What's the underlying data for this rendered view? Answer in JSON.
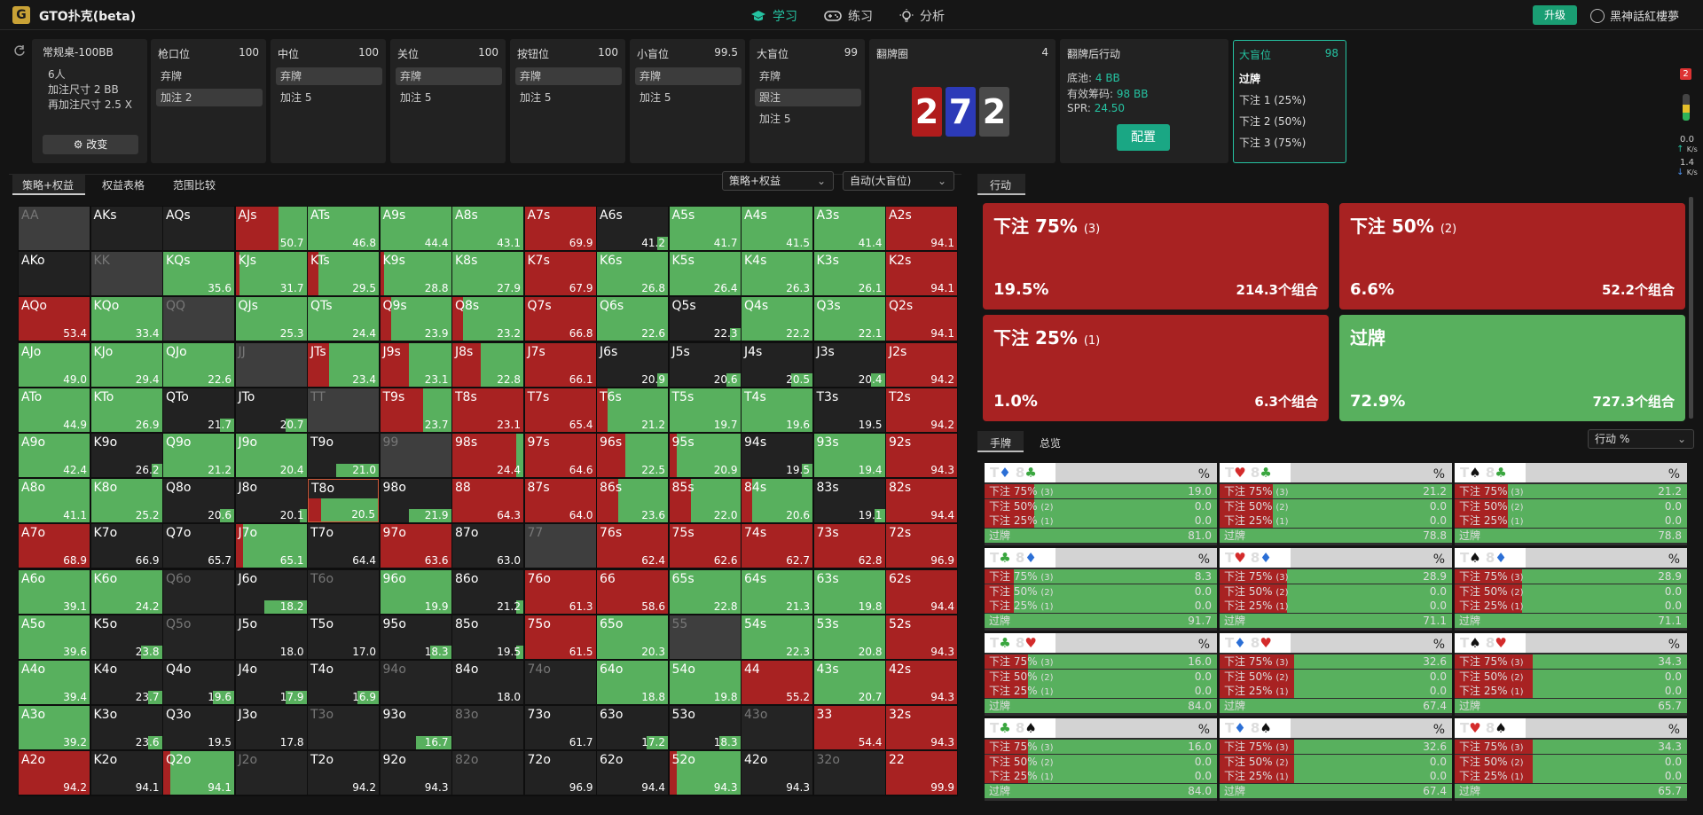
{
  "app": {
    "title": "GTO扑克(beta)",
    "logo": "G"
  },
  "nav": [
    {
      "label": "学习",
      "icon": "graduation-cap-icon"
    },
    {
      "label": "练习",
      "icon": "gamepad-icon"
    },
    {
      "label": "分析",
      "icon": "lightbulb-icon"
    }
  ],
  "header": {
    "upgrade": "升级",
    "user": "黑神話紅樓夢"
  },
  "table": {
    "name": "常规桌-100BB",
    "players": "6人",
    "raise_size": "加注尺寸 2 BB",
    "reraise_size": "再加注尺寸 2.5 X",
    "edit": "改变"
  },
  "positions": [
    {
      "name": "枪口位",
      "stack": "100",
      "options": [
        "弃牌",
        "加注 2"
      ],
      "selected": 1
    },
    {
      "name": "中位",
      "stack": "100",
      "options": [
        "弃牌",
        "加注 5"
      ],
      "selected": 0
    },
    {
      "name": "关位",
      "stack": "100",
      "options": [
        "弃牌",
        "加注 5"
      ],
      "selected": 0
    },
    {
      "name": "按钮位",
      "stack": "100",
      "options": [
        "弃牌",
        "加注 5"
      ],
      "selected": 0
    },
    {
      "name": "小盲位",
      "stack": "99.5",
      "options": [
        "弃牌",
        "加注 5"
      ],
      "selected": 0
    },
    {
      "name": "大盲位",
      "stack": "99",
      "options": [
        "弃牌",
        "跟注",
        "加注 5"
      ],
      "selected": 1
    }
  ],
  "flop": {
    "title": "翻牌圈",
    "count": "4",
    "cards": [
      {
        "rank": "2",
        "color": "#b01c1c"
      },
      {
        "rank": "7",
        "color": "#2c3ab8"
      },
      {
        "rank": "2",
        "color": "#4a4a4a"
      }
    ]
  },
  "postflop": {
    "title": "翻牌后行动",
    "pot_label": "底池:",
    "pot": "4 BB",
    "eff_label": "有效筹码:",
    "eff": "98 BB",
    "spr_label": "SPR:",
    "spr": "24.50",
    "config": "配置"
  },
  "bb_actions": {
    "title": "大盲位",
    "stack": "98",
    "items": [
      "过牌",
      "下注 1 (25%)",
      "下注 2 (50%)",
      "下注 3 (75%)"
    ],
    "badge": "2",
    "speed_up": "0.0",
    "speed_down": "1.4",
    "unit": "K/s"
  },
  "left_tabs": [
    "策略+权益",
    "权益表格",
    "范围比较"
  ],
  "dropdowns": {
    "mode": "策略+权益",
    "position": "自动(大盲位)",
    "hand_metric": "行动 %"
  },
  "actions_tab": "行动",
  "actions": [
    {
      "name": "下注 75%",
      "n": "(3)",
      "pct": "19.5%",
      "combos": "214.3个组合",
      "color": "#a82222"
    },
    {
      "name": "下注 50%",
      "n": "(2)",
      "pct": "6.6%",
      "combos": "52.2个组合",
      "color": "#a82222"
    },
    {
      "name": "下注 25%",
      "n": "(1)",
      "pct": "1.0%",
      "combos": "6.3个组合",
      "color": "#a82222"
    },
    {
      "name": "过牌",
      "n": "",
      "pct": "72.9%",
      "combos": "727.3个组合",
      "color": "#58b05e"
    }
  ],
  "hand_tabs": [
    "手牌",
    "总览"
  ],
  "hand_row_labels": [
    {
      "t": "下注 75%",
      "n": "(3)"
    },
    {
      "t": "下注 50%",
      "n": "(2)"
    },
    {
      "t": "下注 25%",
      "n": "(1)"
    },
    {
      "t": "过牌",
      "n": ""
    }
  ],
  "hands": [
    {
      "r1": "T",
      "s1": "♦",
      "c1": "#2b6fd6",
      "r2": "8",
      "s2": "♣",
      "c2": "#3aa63f",
      "vals": [
        "19.0",
        "0.0",
        "0.0",
        "81.0"
      ]
    },
    {
      "r1": "T",
      "s1": "♥",
      "c1": "#d42b2b",
      "r2": "8",
      "s2": "♣",
      "c2": "#3aa63f",
      "vals": [
        "21.2",
        "0.0",
        "0.0",
        "78.8"
      ]
    },
    {
      "r1": "T",
      "s1": "♠",
      "c1": "#111111",
      "r2": "8",
      "s2": "♣",
      "c2": "#3aa63f",
      "vals": [
        "21.2",
        "0.0",
        "0.0",
        "78.8"
      ]
    },
    {
      "r1": "T",
      "s1": "♣",
      "c1": "#3aa63f",
      "r2": "8",
      "s2": "♦",
      "c2": "#2b6fd6",
      "vals": [
        "8.3",
        "0.0",
        "0.0",
        "91.7"
      ]
    },
    {
      "r1": "T",
      "s1": "♥",
      "c1": "#d42b2b",
      "r2": "8",
      "s2": "♦",
      "c2": "#2b6fd6",
      "vals": [
        "28.9",
        "0.0",
        "0.0",
        "71.1"
      ]
    },
    {
      "r1": "T",
      "s1": "♠",
      "c1": "#111111",
      "r2": "8",
      "s2": "♦",
      "c2": "#2b6fd6",
      "vals": [
        "28.9",
        "0.0",
        "0.0",
        "71.1"
      ]
    },
    {
      "r1": "T",
      "s1": "♣",
      "c1": "#3aa63f",
      "r2": "8",
      "s2": "♥",
      "c2": "#d42b2b",
      "vals": [
        "16.0",
        "0.0",
        "0.0",
        "84.0"
      ]
    },
    {
      "r1": "T",
      "s1": "♦",
      "c1": "#2b6fd6",
      "r2": "8",
      "s2": "♥",
      "c2": "#d42b2b",
      "vals": [
        "32.6",
        "0.0",
        "0.0",
        "67.4"
      ]
    },
    {
      "r1": "T",
      "s1": "♠",
      "c1": "#111111",
      "r2": "8",
      "s2": "♥",
      "c2": "#d42b2b",
      "vals": [
        "34.3",
        "0.0",
        "0.0",
        "65.7"
      ]
    },
    {
      "r1": "T",
      "s1": "♣",
      "c1": "#3aa63f",
      "r2": "8",
      "s2": "♠",
      "c2": "#111111",
      "vals": [
        "16.0",
        "0.0",
        "0.0",
        "84.0"
      ]
    },
    {
      "r1": "T",
      "s1": "♦",
      "c1": "#2b6fd6",
      "r2": "8",
      "s2": "♠",
      "c2": "#111111",
      "vals": [
        "32.6",
        "0.0",
        "0.0",
        "67.4"
      ]
    },
    {
      "r1": "T",
      "s1": "♥",
      "c1": "#d42b2b",
      "r2": "8",
      "s2": "♠",
      "c2": "#111111",
      "vals": [
        "34.3",
        "0.0",
        "0.0",
        "65.7"
      ]
    }
  ],
  "colors": {
    "bet": "#a82222",
    "check": "#58b05e",
    "empty": "#222222",
    "unavail": "#3e3e3e",
    "accent": "#25c3a2"
  },
  "range": {
    "labels": [
      [
        "AA",
        "AKs",
        "AQs",
        "AJs",
        "ATs",
        "A9s",
        "A8s",
        "A7s",
        "A6s",
        "A5s",
        "A4s",
        "A3s",
        "A2s"
      ],
      [
        "AKo",
        "KK",
        "KQs",
        "KJs",
        "KTs",
        "K9s",
        "K8s",
        "K7s",
        "K6s",
        "K5s",
        "K4s",
        "K3s",
        "K2s"
      ],
      [
        "AQo",
        "KQo",
        "QQ",
        "QJs",
        "QTs",
        "Q9s",
        "Q8s",
        "Q7s",
        "Q6s",
        "Q5s",
        "Q4s",
        "Q3s",
        "Q2s"
      ],
      [
        "AJo",
        "KJo",
        "QJo",
        "JJ",
        "JTs",
        "J9s",
        "J8s",
        "J7s",
        "J6s",
        "J5s",
        "J4s",
        "J3s",
        "J2s"
      ],
      [
        "ATo",
        "KTo",
        "QTo",
        "JTo",
        "TT",
        "T9s",
        "T8s",
        "T7s",
        "T6s",
        "T5s",
        "T4s",
        "T3s",
        "T2s"
      ],
      [
        "A9o",
        "K9o",
        "Q9o",
        "J9o",
        "T9o",
        "99",
        "98s",
        "97s",
        "96s",
        "95s",
        "94s",
        "93s",
        "92s"
      ],
      [
        "A8o",
        "K8o",
        "Q8o",
        "J8o",
        "T8o",
        "98o",
        "88",
        "87s",
        "86s",
        "85s",
        "84s",
        "83s",
        "82s"
      ],
      [
        "A7o",
        "K7o",
        "Q7o",
        "J7o",
        "T7o",
        "97o",
        "87o",
        "77",
        "76s",
        "75s",
        "74s",
        "73s",
        "72s"
      ],
      [
        "A6o",
        "K6o",
        "Q6o",
        "J6o",
        "T6o",
        "96o",
        "86o",
        "76o",
        "66",
        "65s",
        "64s",
        "63s",
        "62s"
      ],
      [
        "A5o",
        "K5o",
        "Q5o",
        "J5o",
        "T5o",
        "95o",
        "85o",
        "75o",
        "65o",
        "55",
        "54s",
        "53s",
        "52s"
      ],
      [
        "A4o",
        "K4o",
        "Q4o",
        "J4o",
        "T4o",
        "94o",
        "84o",
        "74o",
        "64o",
        "54o",
        "44",
        "43s",
        "42s"
      ],
      [
        "A3o",
        "K3o",
        "Q3o",
        "J3o",
        "T3o",
        "93o",
        "83o",
        "73o",
        "63o",
        "53o",
        "43o",
        "33",
        "32s"
      ],
      [
        "A2o",
        "K2o",
        "Q2o",
        "J2o",
        "T2o",
        "92o",
        "82o",
        "72o",
        "62o",
        "52o",
        "42o",
        "32o",
        "22"
      ]
    ],
    "values": [
      [
        "",
        "",
        "",
        "50.7",
        "46.8",
        "44.4",
        "43.1",
        "69.9",
        "41.2",
        "41.7",
        "41.5",
        "41.4",
        "94.1"
      ],
      [
        "",
        "",
        "35.6",
        "31.7",
        "29.5",
        "28.8",
        "27.9",
        "67.9",
        "26.8",
        "26.4",
        "26.3",
        "26.1",
        "94.1"
      ],
      [
        "53.4",
        "33.4",
        "",
        "25.3",
        "24.4",
        "23.9",
        "23.2",
        "66.8",
        "22.6",
        "22.3",
        "22.2",
        "22.1",
        "94.1"
      ],
      [
        "49.0",
        "29.4",
        "22.6",
        "",
        "23.4",
        "23.1",
        "22.8",
        "66.1",
        "20.9",
        "20.6",
        "20.5",
        "20.4",
        "94.2"
      ],
      [
        "44.9",
        "26.9",
        "21.7",
        "20.7",
        "",
        "23.7",
        "23.1",
        "65.4",
        "21.2",
        "19.7",
        "19.6",
        "19.5",
        "94.2"
      ],
      [
        "42.4",
        "26.2",
        "21.2",
        "20.4",
        "21.0",
        "",
        "24.4",
        "64.6",
        "22.5",
        "20.9",
        "19.5",
        "19.4",
        "94.3"
      ],
      [
        "41.1",
        "25.2",
        "20.6",
        "20.1",
        "20.5",
        "21.9",
        "64.3",
        "64.0",
        "23.6",
        "22.0",
        "20.6",
        "19.1",
        "94.4"
      ],
      [
        "68.9",
        "66.9",
        "65.7",
        "65.1",
        "64.4",
        "63.6",
        "63.0",
        "",
        "62.4",
        "62.6",
        "62.7",
        "62.8",
        "96.9"
      ],
      [
        "39.1",
        "24.2",
        "",
        "18.2",
        "",
        "19.9",
        "21.2",
        "61.3",
        "58.6",
        "22.8",
        "21.3",
        "19.8",
        "94.4"
      ],
      [
        "39.6",
        "23.8",
        "",
        "18.0",
        "17.0",
        "18.3",
        "19.5",
        "61.5",
        "20.3",
        "",
        "22.3",
        "20.8",
        "94.3"
      ],
      [
        "39.4",
        "23.7",
        "19.6",
        "17.9",
        "16.9",
        "",
        "18.0",
        "",
        "18.8",
        "19.8",
        "55.2",
        "20.7",
        "94.3"
      ],
      [
        "39.2",
        "23.6",
        "19.5",
        "17.8",
        "",
        "16.7",
        "",
        "61.7",
        "17.2",
        "18.3",
        "",
        "54.4",
        "94.3"
      ],
      [
        "94.2",
        "94.1",
        "94.1",
        "",
        "94.2",
        "94.3",
        "",
        "96.9",
        "94.4",
        "94.3",
        "94.3",
        "",
        "99.9"
      ]
    ],
    "mix": [
      [
        "u",
        "e",
        "e",
        "r0.6",
        "g",
        "g",
        "g",
        "r1",
        "e0.15",
        "g",
        "g",
        "g",
        "r1"
      ],
      [
        "e",
        "u",
        "g",
        "g0.95",
        "g0.85",
        "g0.95",
        "g",
        "r1",
        "g",
        "g",
        "g",
        "g",
        "r1"
      ],
      [
        "r1",
        "g",
        "u",
        "g",
        "g",
        "g0.85",
        "g0.85",
        "r1",
        "g",
        "e0.15",
        "g",
        "g",
        "r1"
      ],
      [
        "g",
        "g",
        "g",
        "u",
        "r0.3",
        "r0.4",
        "r0.4",
        "r1",
        "e0.15",
        "e0.2",
        "e0.3",
        "e0.2",
        "r1"
      ],
      [
        "g",
        "g",
        "e0.2",
        "e0.3",
        "u",
        "r0.6",
        "r1",
        "r1",
        "g0.85",
        "g",
        "g",
        "e0",
        "r1"
      ],
      [
        "g",
        "e0.15",
        "g",
        "g",
        "e0.6",
        "u",
        "r0.9",
        "r1",
        "r0.4",
        "g0.9",
        "e0.15",
        "g",
        "r1"
      ],
      [
        "g",
        "g",
        "e0.2",
        "e0.1",
        "sel",
        "e0.6",
        "r1",
        "r1",
        "r0.3",
        "r0.3",
        "g0.85",
        "e0.15",
        "r1"
      ],
      [
        "r1",
        "e0",
        "e0",
        "r0.1",
        "e0",
        "r1",
        "e0",
        "u",
        "r1",
        "r1",
        "r1",
        "r1",
        "r1"
      ],
      [
        "g",
        "g",
        "d",
        "e0.6",
        "d",
        "g",
        "e0.1",
        "r1",
        "r1",
        "g",
        "g",
        "g",
        "r1"
      ],
      [
        "g",
        "e0.3",
        "d",
        "e0",
        "e0",
        "e0.3",
        "e0.1",
        "r1",
        "g",
        "u",
        "g",
        "g",
        "r1"
      ],
      [
        "g",
        "e0.2",
        "e0.3",
        "e0.3",
        "e0.3",
        "d",
        "e0",
        "d",
        "g",
        "g",
        "r1",
        "g",
        "r1"
      ],
      [
        "g",
        "e0.2",
        "e0",
        "e0",
        "d",
        "e0.5",
        "d",
        "e0",
        "e0.3",
        "e0.3",
        "d",
        "r1",
        "r1"
      ],
      [
        "r1",
        "e0",
        "r0.1",
        "d",
        "e0",
        "e0",
        "d",
        "e0",
        "e0",
        "r0.1",
        "e0",
        "d",
        "r1"
      ]
    ]
  }
}
